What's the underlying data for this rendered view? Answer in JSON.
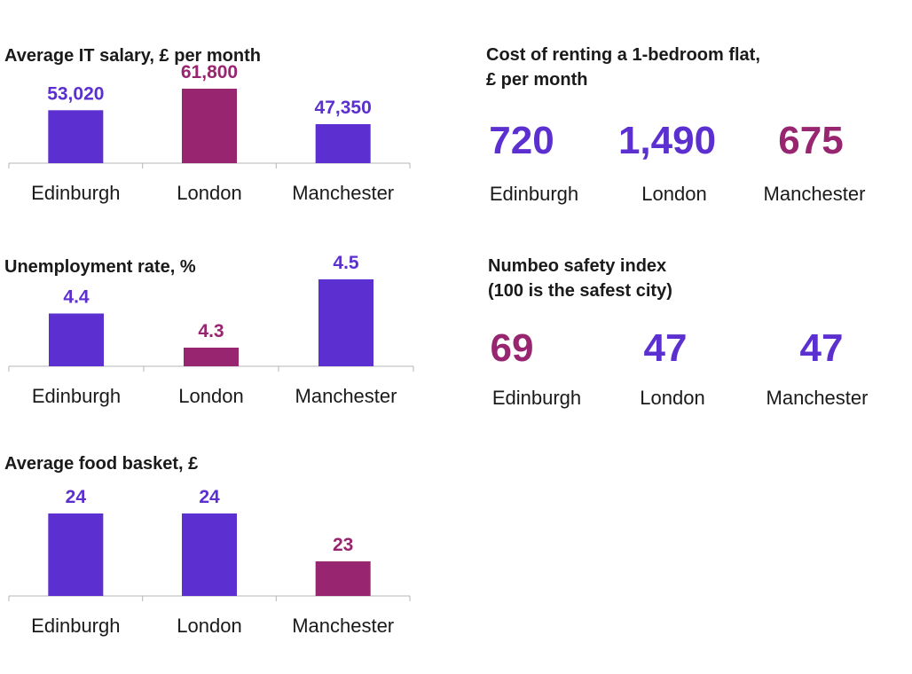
{
  "colors": {
    "primary": "#5b2fd0",
    "highlight": "#97256f",
    "axis": "#b5b5b5",
    "text": "#1a1a1a"
  },
  "chart_data": [
    {
      "id": "salary",
      "type": "bar",
      "title": "Average IT salary, £ per month",
      "categories": [
        "Edinburgh",
        "London",
        "Manchester"
      ],
      "values": [
        53020,
        61800,
        47350
      ],
      "value_labels": [
        "53,020",
        "61,800",
        "47,350"
      ],
      "highlight": [
        false,
        true,
        false
      ],
      "ylim": [
        40000,
        64000
      ]
    },
    {
      "id": "unemployment",
      "type": "bar",
      "title": "Unemployment rate, %",
      "categories": [
        "Edinburgh",
        "London",
        "Manchester"
      ],
      "values": [
        4.4,
        4.3,
        4.5
      ],
      "value_labels": [
        "4.4",
        "4.3",
        "4.5"
      ],
      "highlight": [
        false,
        true,
        false
      ],
      "ylim": [
        4.0,
        4.6
      ]
    },
    {
      "id": "food",
      "type": "bar",
      "title": "Average food basket, £",
      "categories": [
        "Edinburgh",
        "London",
        "Manchester"
      ],
      "values": [
        24,
        24,
        23
      ],
      "value_labels": [
        "24",
        "24",
        "23"
      ],
      "highlight": [
        false,
        false,
        true
      ],
      "ylim": [
        22,
        24
      ]
    },
    {
      "id": "rent",
      "type": "table",
      "title_line1": "Cost of renting a 1-bedroom flat,",
      "title_line2": "£ per month",
      "categories": [
        "Edinburgh",
        "London",
        "Manchester"
      ],
      "values": [
        720,
        1490,
        675
      ],
      "value_labels": [
        "720",
        "1,490",
        "675"
      ],
      "highlight": [
        false,
        false,
        true
      ]
    },
    {
      "id": "safety",
      "type": "table",
      "title_line1": "Numbeo safety index",
      "title_line2": "(100 is the safest city)",
      "categories": [
        "Edinburgh",
        "London",
        "Manchester"
      ],
      "values": [
        69,
        47,
        47
      ],
      "value_labels": [
        "69",
        "47",
        "47"
      ],
      "highlight": [
        true,
        false,
        false
      ]
    }
  ]
}
